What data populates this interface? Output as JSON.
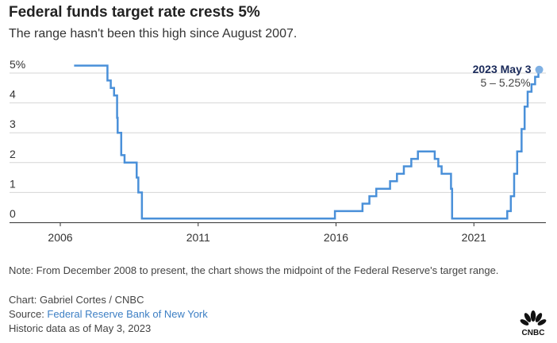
{
  "chart_data": {
    "type": "line",
    "title": "Federal funds target rate crests 5%",
    "subtitle": "The range hasn't been this high since August 2007.",
    "xlabel": "",
    "ylabel": "",
    "xlim": [
      2005.1,
      2023.9
    ],
    "ylim": [
      0,
      5
    ],
    "x_ticks": [
      2006,
      2011,
      2016,
      2021
    ],
    "x_tick_labels": [
      "2006",
      "2011",
      "2016",
      "2021"
    ],
    "y_ticks": [
      0,
      1,
      2,
      3,
      4,
      5
    ],
    "y_tick_labels": [
      "0",
      "1",
      "2",
      "3",
      "4",
      "5%"
    ],
    "grid": true,
    "step": true,
    "series": [
      {
        "name": "Federal funds target rate",
        "color": "#4a90d9",
        "x": [
          2006.5,
          2007.71,
          2007.83,
          2007.95,
          2008.06,
          2008.08,
          2008.21,
          2008.33,
          2008.77,
          2008.83,
          2008.96,
          2015.96,
          2016.96,
          2017.21,
          2017.46,
          2017.96,
          2018.21,
          2018.46,
          2018.73,
          2018.97,
          2019.58,
          2019.71,
          2019.83,
          2020.17,
          2020.21,
          2022.21,
          2022.34,
          2022.46,
          2022.57,
          2022.73,
          2022.84,
          2022.95,
          2023.09,
          2023.22,
          2023.34
        ],
        "y": [
          5.25,
          4.75,
          4.5,
          4.25,
          3.5,
          3.0,
          2.25,
          2.0,
          1.5,
          1.0,
          0.125,
          0.375,
          0.625,
          0.875,
          1.125,
          1.375,
          1.625,
          1.875,
          2.125,
          2.375,
          2.125,
          1.875,
          1.625,
          1.125,
          0.125,
          0.375,
          0.875,
          1.625,
          2.375,
          3.125,
          3.875,
          4.375,
          4.625,
          4.875,
          5.125
        ]
      }
    ],
    "annotation": {
      "title": "2023 May 3",
      "text": "5 – 5.25%",
      "x": 2023.34,
      "y": 5.125
    }
  },
  "footer": {
    "note": "Note: From December 2008 to present, the chart shows the midpoint of the Federal Reserve's target range.",
    "credit": "Chart: Gabriel Cortes / CNBC",
    "source_label": "Source: ",
    "source_link": "Federal Reserve Bank of New York",
    "asof": "Historic data as of May 3, 2023",
    "logo": "CNBC"
  }
}
